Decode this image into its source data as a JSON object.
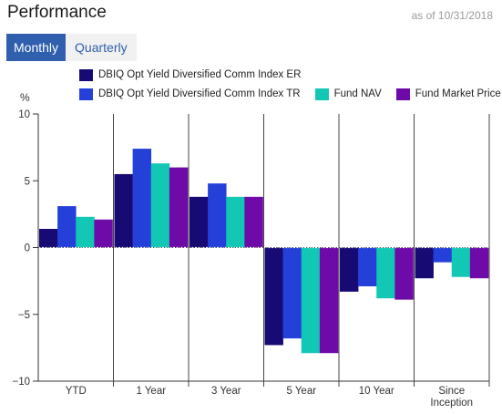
{
  "header": {
    "title": "Performance",
    "as_of": "as of 10/31/2018"
  },
  "tabs": [
    {
      "label": "Monthly",
      "active": true
    },
    {
      "label": "Quarterly",
      "active": false
    }
  ],
  "colors": {
    "accent": "#2f5fad"
  },
  "chart_data": {
    "type": "bar",
    "ylabel": "%",
    "ylim": [
      -10,
      10
    ],
    "yticks": [
      10,
      5,
      0,
      -5,
      -10
    ],
    "grid": "vertical separators between categories",
    "legend_position": "top",
    "categories": [
      "YTD",
      "1 Year",
      "3 Year",
      "5 Year",
      "10 Year",
      "Since Inception"
    ],
    "category_labels": [
      [
        "YTD"
      ],
      [
        "1 Year"
      ],
      [
        "3 Year"
      ],
      [
        "5 Year"
      ],
      [
        "10 Year"
      ],
      [
        "Since",
        "Inception"
      ]
    ],
    "series": [
      {
        "name": "DBIQ Opt Yield Diversified Comm Index ER",
        "color": "#170a73",
        "values": [
          1.4,
          5.5,
          3.8,
          -7.3,
          -3.3,
          -2.3
        ]
      },
      {
        "name": "DBIQ Opt Yield Diversified Comm Index TR",
        "color": "#2440d8",
        "values": [
          3.1,
          7.4,
          4.8,
          -6.8,
          -2.9,
          -1.1
        ]
      },
      {
        "name": "Fund NAV",
        "color": "#13c7b5",
        "values": [
          2.3,
          6.3,
          3.8,
          -7.9,
          -3.8,
          -2.2
        ]
      },
      {
        "name": "Fund Market Price",
        "color": "#6e0aa8",
        "values": [
          2.1,
          6.0,
          3.8,
          -7.9,
          -3.9,
          -2.3
        ]
      }
    ]
  }
}
